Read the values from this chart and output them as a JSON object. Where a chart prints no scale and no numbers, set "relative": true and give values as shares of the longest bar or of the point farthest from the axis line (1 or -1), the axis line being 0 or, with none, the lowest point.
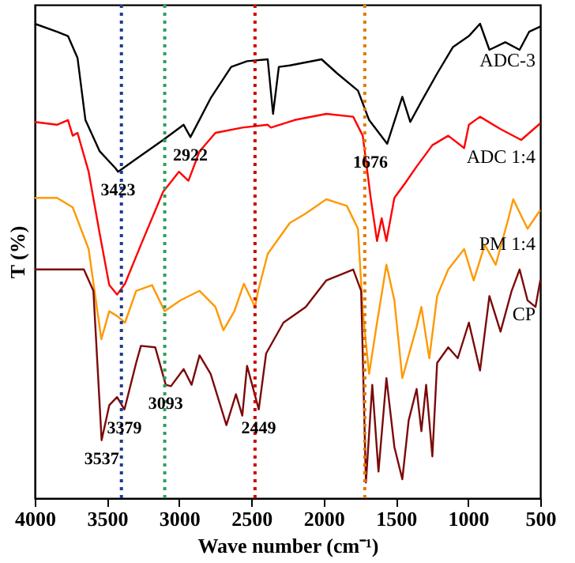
{
  "chart_data": {
    "type": "line",
    "relative": true,
    "xlabel": "Wave number (cm⁻¹)",
    "ylabel": "T (%)",
    "xlim": [
      4000,
      500
    ],
    "xticks": [
      4000,
      3500,
      3000,
      2500,
      2000,
      1500,
      1000,
      500
    ],
    "grid": false,
    "line_style": "solid",
    "marker": "none",
    "series": [
      {
        "name": "ADC-3",
        "color": "#000000",
        "x": [
          4000,
          3846,
          3770,
          3704,
          3649,
          3550,
          3440,
          3423,
          3298,
          3111,
          2969,
          2922,
          2782,
          2640,
          2530,
          2387,
          2350,
          2310,
          2234,
          2014,
          1905,
          1762,
          1685,
          1560,
          1455,
          1400,
          1323,
          1214,
          1104,
          994,
          917,
          852,
          742,
          643,
          577,
          500
        ],
        "values": [
          1,
          0.983,
          0.974,
          0.928,
          0.797,
          0.731,
          0.695,
          0.688,
          0.715,
          0.755,
          0.787,
          0.761,
          0.843,
          0.909,
          0.921,
          0.925,
          0.81,
          0.909,
          0.912,
          0.925,
          0.895,
          0.859,
          0.797,
          0.747,
          0.846,
          0.793,
          0.836,
          0.895,
          0.951,
          0.974,
          1,
          0.945,
          0.961,
          0.945,
          0.983,
          0.994
        ]
      },
      {
        "name": "ADC 1:4",
        "color": "#ff0000",
        "x": [
          4000,
          3846,
          3770,
          3737,
          3704,
          3627,
          3550,
          3484,
          3430,
          3375,
          3265,
          3111,
          3002,
          2936,
          2859,
          2749,
          2563,
          2387,
          2365,
          2201,
          1981,
          1795,
          1729,
          1674,
          1630,
          1598,
          1565,
          1510,
          1433,
          1356,
          1247,
          1137,
          1027,
          994,
          917,
          775,
          632,
          500
        ],
        "values": [
          0.793,
          0.787,
          0.797,
          0.764,
          0.77,
          0.688,
          0.557,
          0.449,
          0.429,
          0.452,
          0.534,
          0.646,
          0.688,
          0.669,
          0.731,
          0.77,
          0.781,
          0.787,
          0.781,
          0.797,
          0.81,
          0.804,
          0.764,
          0.633,
          0.542,
          0.59,
          0.542,
          0.633,
          0.665,
          0.699,
          0.744,
          0.764,
          0.738,
          0.787,
          0.804,
          0.778,
          0.755,
          0.79
        ]
      },
      {
        "name": "PM 1:4",
        "color": "#ff9900",
        "x": [
          4000,
          3846,
          3737,
          3627,
          3539,
          3484,
          3430,
          3375,
          3298,
          3188,
          3100,
          2991,
          2859,
          2749,
          2694,
          2618,
          2552,
          2475,
          2453,
          2387,
          2234,
          2124,
          1981,
          1839,
          1762,
          1729,
          1685,
          1630,
          1565,
          1510,
          1455,
          1356,
          1323,
          1268,
          1214,
          1137,
          1027,
          961,
          884,
          808,
          720,
          687,
          588,
          500
        ],
        "values": [
          0.633,
          0.633,
          0.613,
          0.525,
          0.335,
          0.394,
          0.384,
          0.37,
          0.437,
          0.449,
          0.394,
          0.417,
          0.437,
          0.403,
          0.354,
          0.394,
          0.452,
          0.403,
          0.437,
          0.515,
          0.58,
          0.6,
          0.63,
          0.616,
          0.568,
          0.394,
          0.262,
          0.37,
          0.492,
          0.417,
          0.253,
          0.361,
          0.403,
          0.295,
          0.426,
          0.482,
          0.525,
          0.459,
          0.534,
          0.492,
          0.59,
          0.63,
          0.568,
          0.607
        ]
      },
      {
        "name": "CP",
        "color": "#7b0a0a",
        "x": [
          4000,
          3846,
          3660,
          3594,
          3537,
          3484,
          3430,
          3379,
          3298,
          3265,
          3166,
          3093,
          3057,
          2969,
          2914,
          2859,
          2782,
          2673,
          2607,
          2563,
          2530,
          2449,
          2398,
          2278,
          2124,
          1981,
          1795,
          1740,
          1707,
          1663,
          1620,
          1565,
          1510,
          1455,
          1411,
          1356,
          1323,
          1290,
          1247,
          1214,
          1137,
          1071,
          994,
          917,
          852,
          775,
          698,
          643,
          588,
          533,
          500
        ],
        "values": [
          0.482,
          0.482,
          0.482,
          0.437,
          0.122,
          0.196,
          0.213,
          0.187,
          0.285,
          0.321,
          0.318,
          0.239,
          0.236,
          0.272,
          0.239,
          0.301,
          0.262,
          0.154,
          0.219,
          0.174,
          0.279,
          0.187,
          0.305,
          0.37,
          0.403,
          0.459,
          0.482,
          0.437,
          0.033,
          0.239,
          0.056,
          0.253,
          0.108,
          0.04,
          0.164,
          0.23,
          0.141,
          0.239,
          0.088,
          0.285,
          0.318,
          0.295,
          0.37,
          0.269,
          0.426,
          0.351,
          0.437,
          0.482,
          0.417,
          0.403,
          0.459
        ]
      }
    ],
    "ref_lines": [
      {
        "axis": "x",
        "value": 3400,
        "label": null,
        "color": "#1f3a93",
        "line_style": "dotted"
      },
      {
        "axis": "x",
        "value": 3100,
        "label": null,
        "color": "#2ca05a",
        "line_style": "dotted"
      },
      {
        "axis": "x",
        "value": 2475,
        "label": null,
        "color": "#cc0000",
        "line_style": "dotted"
      },
      {
        "axis": "x",
        "value": 1715,
        "label": null,
        "color": "#e07b00",
        "line_style": "dotted"
      }
    ],
    "annotations": [
      {
        "text": "3423",
        "x": 3423,
        "y": 0.688
      },
      {
        "text": "2922",
        "x": 2922,
        "y": 0.761
      },
      {
        "text": "1676",
        "x": 1676,
        "y": 0.747
      },
      {
        "text": "3537",
        "x": 3537,
        "y": 0.122
      },
      {
        "text": "3379",
        "x": 3379,
        "y": 0.187
      },
      {
        "text": "3093",
        "x": 3093,
        "y": 0.239
      },
      {
        "text": "2449",
        "x": 2449,
        "y": 0.187
      }
    ]
  }
}
